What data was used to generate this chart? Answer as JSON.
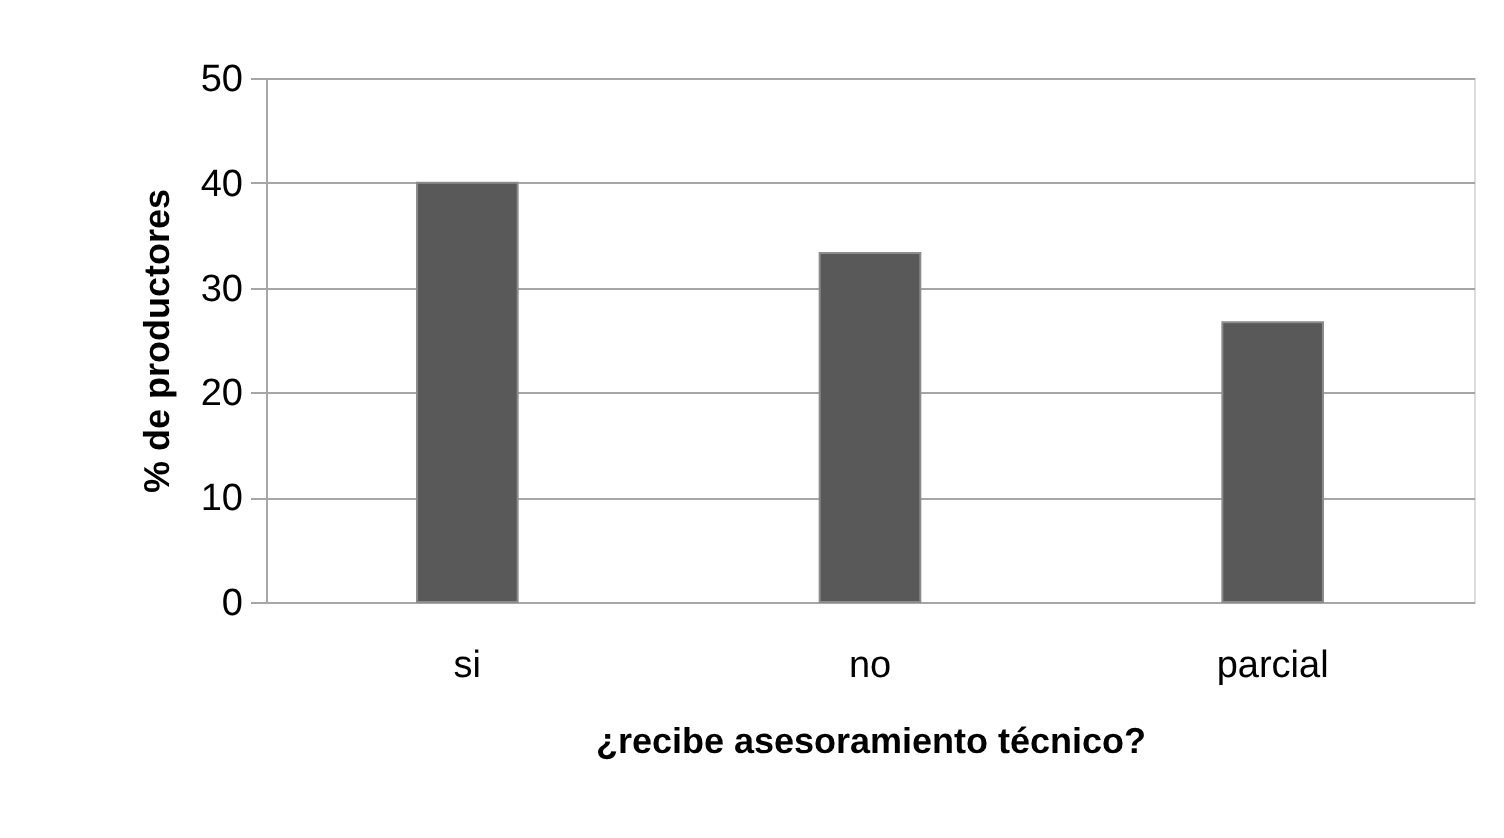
{
  "chart_data": {
    "type": "bar",
    "categories": [
      "si",
      "no",
      "parcial"
    ],
    "values": [
      40,
      33.3,
      26.7
    ],
    "color": "#595959",
    "xlabel": "¿recibe asesoramiento técnico?",
    "ylabel": "% de productores",
    "ylim": [
      0,
      50
    ],
    "yticks": [
      0,
      10,
      20,
      30,
      40,
      50
    ],
    "grid": "y"
  }
}
